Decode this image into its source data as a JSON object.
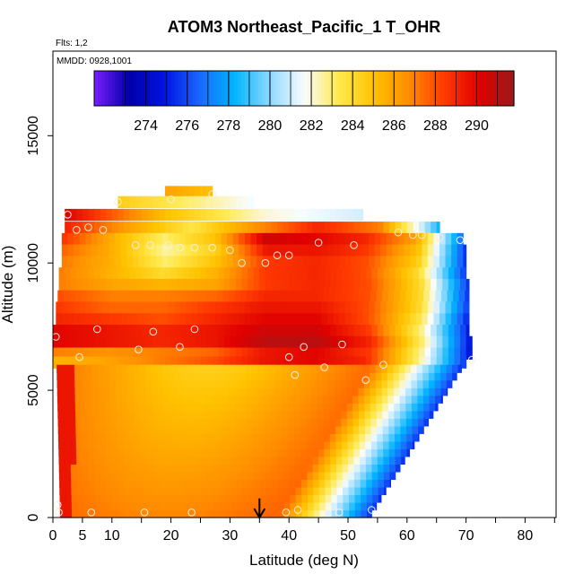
{
  "chart_data": {
    "type": "heatmap",
    "title": "ATOM3 Northeast_Pacific_1 T_OHR",
    "subtitle_flights": "Flts: 1,2",
    "subtitle_dates": "MMDD: 0928,1001",
    "xlabel": "Latitude (deg N)",
    "ylabel": "Altitude (m)",
    "xlim": [
      0,
      85
    ],
    "ylim": [
      0,
      18000
    ],
    "x_ticks": [
      0,
      5,
      10,
      20,
      30,
      40,
      50,
      60,
      70,
      80
    ],
    "x_minor_ticks": [
      15,
      25,
      35,
      45,
      55,
      65,
      75,
      85
    ],
    "y_ticks": [
      0,
      5000,
      10000,
      15000
    ],
    "colorbar": {
      "min": 271.5,
      "max": 291.8,
      "tick_values": [
        274,
        276,
        278,
        280,
        282,
        284,
        286,
        288,
        290
      ],
      "tick_labels": [
        "274",
        "276",
        "278",
        "280",
        "282",
        "284",
        "286",
        "288",
        "290"
      ],
      "colors": [
        "#7a1dff",
        "#0000a8",
        "#0014e0",
        "#1a66ff",
        "#00b4ff",
        "#8cd8ff",
        "#f8fcff",
        "#ffe94d",
        "#ffc200",
        "#ff8c00",
        "#ff3a00",
        "#e00000",
        "#9a1a1a"
      ]
    },
    "flight_layers": [
      {
        "alt": 12800,
        "x0": 19,
        "x1": 27,
        "values": [
          286,
          285
        ]
      },
      {
        "alt": 12400,
        "x0": 11,
        "x1": 34,
        "values": [
          284.5,
          283,
          281.5
        ]
      },
      {
        "alt": 11900,
        "x0": 2,
        "x1": 52.5,
        "values": [
          290,
          285,
          282,
          281
        ]
      },
      {
        "alt": 11400,
        "x0": 2,
        "x1": 65.5,
        "values": [
          289,
          286,
          283.5,
          286.5,
          289,
          287,
          278
        ]
      },
      {
        "alt": 10950,
        "x0": 1.5,
        "x1": 69.5,
        "values": [
          288.5,
          285.5,
          283,
          285,
          290.5,
          290,
          289,
          286,
          276
        ]
      },
      {
        "alt": 10500,
        "x0": 1.5,
        "x1": 70,
        "values": [
          287.5,
          285.5,
          282.5,
          284.5,
          289.5,
          289.5,
          288.5,
          285,
          275
        ]
      },
      {
        "alt": 10050,
        "x0": 1.5,
        "x1": 70,
        "values": [
          287,
          285.5,
          283,
          285,
          288.5,
          289,
          288,
          284.5,
          275
        ]
      },
      {
        "alt": 9600,
        "x0": 1,
        "x1": 70,
        "values": [
          287,
          285.5,
          284,
          285.5,
          288.5,
          289,
          288,
          284,
          275
        ]
      },
      {
        "alt": 9150,
        "x0": 1,
        "x1": 70.5,
        "values": [
          287,
          286,
          285.5,
          286,
          288.5,
          289,
          288,
          284,
          275
        ]
      },
      {
        "alt": 8700,
        "x0": 0.8,
        "x1": 70.5,
        "values": [
          288,
          287,
          287,
          287.5,
          289,
          289,
          288,
          284,
          275
        ]
      },
      {
        "alt": 8250,
        "x0": 0.5,
        "x1": 70.5,
        "values": [
          288.5,
          287.5,
          287.5,
          288.5,
          289.5,
          289.5,
          288,
          284,
          275
        ]
      },
      {
        "alt": 7800,
        "x0": 0.5,
        "x1": 70.5,
        "values": [
          289,
          288.5,
          288,
          289,
          290,
          290,
          288,
          283.5,
          274.5
        ]
      },
      {
        "alt": 7350,
        "x0": 0,
        "x1": 70.5,
        "values": [
          290,
          289.5,
          289,
          289.5,
          290.5,
          290.5,
          288.5,
          283,
          274.5
        ]
      },
      {
        "alt": 6900,
        "x0": 0,
        "x1": 71,
        "values": [
          290,
          289.5,
          289,
          289.5,
          291,
          291,
          289,
          283,
          274
        ]
      },
      {
        "alt": 6450,
        "x0": 0,
        "x1": 71,
        "values": [
          287,
          286.5,
          287,
          287.5,
          289.5,
          290,
          288.5,
          282.5,
          274
        ]
      },
      {
        "alt": 6100,
        "x0": 0,
        "x1": 70,
        "values": [
          285.5,
          286,
          287,
          288,
          289.5,
          290,
          289,
          283,
          275
        ]
      }
    ],
    "mid_columns": [
      {
        "x_min": 0,
        "x_max": 70,
        "val_min": 276,
        "val_max": 289
      },
      {
        "x_min": 1.5,
        "x_max": 69,
        "val_min": 276,
        "val_max": 289
      }
    ],
    "observation_points": [
      {
        "x": 0.5,
        "y": 7100
      },
      {
        "x": 4.5,
        "y": 6300
      },
      {
        "x": 7.5,
        "y": 7400
      },
      {
        "x": 14.5,
        "y": 6600
      },
      {
        "x": 17,
        "y": 7300
      },
      {
        "x": 21.5,
        "y": 6700
      },
      {
        "x": 24,
        "y": 7400
      },
      {
        "x": 40,
        "y": 6300
      },
      {
        "x": 41,
        "y": 5600
      },
      {
        "x": 42.5,
        "y": 6700
      },
      {
        "x": 49,
        "y": 6800
      },
      {
        "x": 46,
        "y": 5900
      },
      {
        "x": 53,
        "y": 5400
      },
      {
        "x": 56,
        "y": 6000
      },
      {
        "x": 71,
        "y": 6200
      },
      {
        "x": 2.5,
        "y": 11900
      },
      {
        "x": 4,
        "y": 11300
      },
      {
        "x": 6,
        "y": 11400
      },
      {
        "x": 8.5,
        "y": 11300
      },
      {
        "x": 11,
        "y": 12400
      },
      {
        "x": 14,
        "y": 10700
      },
      {
        "x": 16.5,
        "y": 10700
      },
      {
        "x": 19.5,
        "y": 10700
      },
      {
        "x": 21.5,
        "y": 10600
      },
      {
        "x": 24,
        "y": 10600
      },
      {
        "x": 27,
        "y": 10600
      },
      {
        "x": 30,
        "y": 10500
      },
      {
        "x": 20,
        "y": 12500
      },
      {
        "x": 27,
        "y": 12700
      },
      {
        "x": 32,
        "y": 10000
      },
      {
        "x": 36,
        "y": 10000
      },
      {
        "x": 38,
        "y": 10300
      },
      {
        "x": 40,
        "y": 10300
      },
      {
        "x": 45,
        "y": 10800
      },
      {
        "x": 51,
        "y": 10700
      },
      {
        "x": 58.5,
        "y": 11200
      },
      {
        "x": 61,
        "y": 11100
      },
      {
        "x": 62.5,
        "y": 11100
      },
      {
        "x": 65.5,
        "y": 11000
      },
      {
        "x": 69,
        "y": 10900
      },
      {
        "x": 1,
        "y": 200
      },
      {
        "x": 6.5,
        "y": 200
      },
      {
        "x": 15.5,
        "y": 200
      },
      {
        "x": 23.5,
        "y": 200
      },
      {
        "x": 39.5,
        "y": 200
      },
      {
        "x": 41.5,
        "y": 300
      },
      {
        "x": 48.5,
        "y": 200
      },
      {
        "x": 54,
        "y": 300
      },
      {
        "x": 0.8,
        "y": 500
      }
    ],
    "marker_arrow": {
      "x": 35,
      "y_top": 600,
      "y_bottom": 0
    }
  }
}
